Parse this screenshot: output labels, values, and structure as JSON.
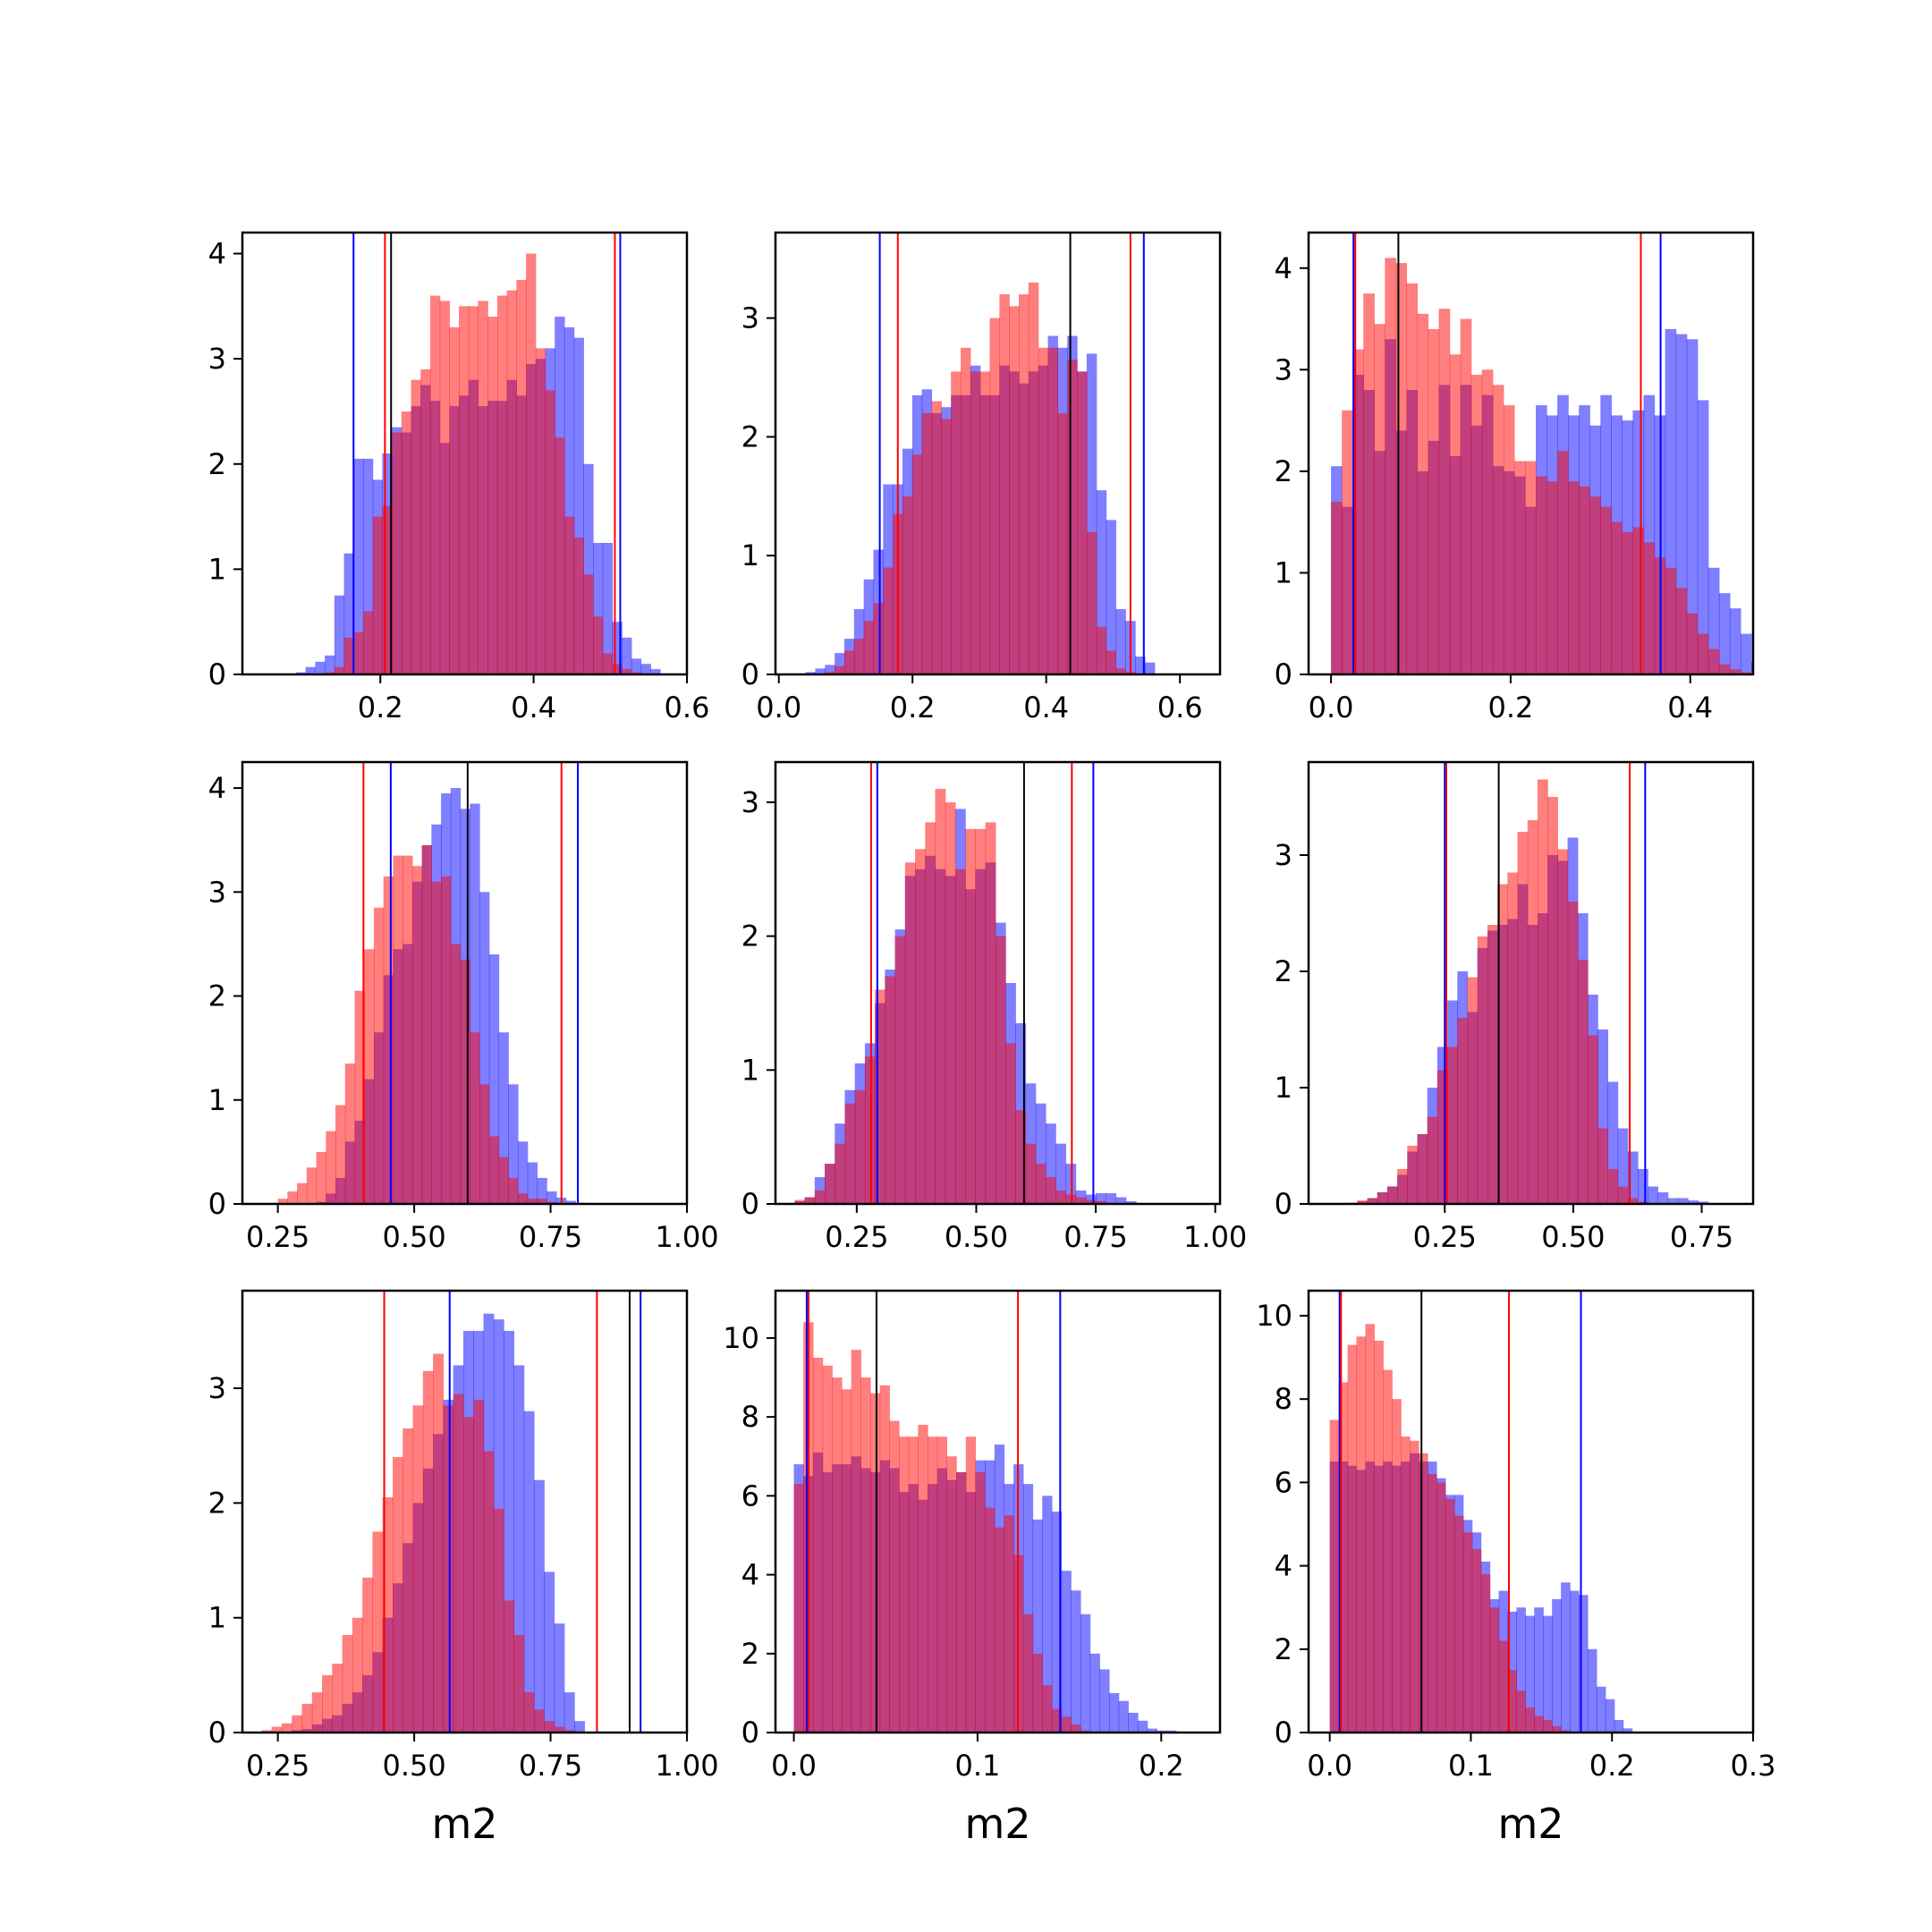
{
  "figure": {
    "colors": {
      "blue": "#0000ff",
      "red": "#ff0000",
      "black": "#000000",
      "blue_fill": "rgba(0,0,255,0.5)",
      "red_fill": "rgba(255,0,0,0.5)"
    }
  },
  "chart_data": [
    {
      "type": "bar",
      "xlabel": "",
      "xlim": [
        0.02,
        0.6
      ],
      "ylim": [
        0,
        4.2
      ],
      "xticks": [
        0.2,
        0.4,
        0.6
      ],
      "yticks": [
        0,
        1,
        2,
        3,
        4
      ],
      "xtick_labels": [
        "0.2",
        "0.4",
        "0.6"
      ],
      "ytick_labels": [
        "0",
        "1",
        "2",
        "3",
        "4"
      ],
      "bins_start": 0.09,
      "bin_width": 0.0125,
      "blue": [
        0.02,
        0.07,
        0.12,
        0.18,
        0.75,
        1.15,
        2.05,
        2.05,
        1.85,
        2.1,
        2.35,
        2.3,
        2.55,
        2.75,
        2.6,
        2.2,
        2.55,
        2.65,
        2.8,
        2.55,
        2.6,
        2.6,
        2.8,
        2.65,
        2.95,
        3.0,
        3.1,
        3.4,
        3.3,
        3.2,
        2.0,
        1.25,
        1.25,
        0.5,
        0.35,
        0.15,
        0.1,
        0.05
      ],
      "red": [
        0,
        0,
        0,
        0.02,
        0.07,
        0.35,
        0.4,
        0.6,
        1.5,
        1.6,
        2.3,
        2.5,
        2.8,
        2.9,
        3.6,
        3.55,
        3.3,
        3.5,
        3.5,
        3.55,
        3.4,
        3.6,
        3.65,
        3.75,
        4.0,
        3.1,
        2.7,
        2.25,
        1.5,
        1.3,
        0.95,
        0.55,
        0.2,
        0.1,
        0.05,
        0.02,
        0,
        0
      ],
      "vlines": [
        {
          "x": 0.165,
          "color": "blue"
        },
        {
          "x": 0.206,
          "color": "red"
        },
        {
          "x": 0.214,
          "color": "black"
        },
        {
          "x": 0.506,
          "color": "red"
        },
        {
          "x": 0.513,
          "color": "blue"
        }
      ]
    },
    {
      "type": "bar",
      "xlabel": "",
      "xlim": [
        -0.005,
        0.66
      ],
      "ylim": [
        0,
        3.72
      ],
      "xticks": [
        0.0,
        0.2,
        0.4,
        0.6
      ],
      "yticks": [
        0,
        1,
        2,
        3
      ],
      "xtick_labels": [
        "0.0",
        "0.2",
        "0.4",
        "0.6"
      ],
      "ytick_labels": [
        "0",
        "1",
        "2",
        "3"
      ],
      "bins_start": 0.04,
      "bin_width": 0.0145,
      "blue": [
        0.02,
        0.05,
        0.08,
        0.18,
        0.3,
        0.55,
        0.8,
        1.05,
        1.6,
        1.6,
        1.9,
        2.35,
        2.4,
        2.2,
        2.25,
        2.35,
        2.35,
        2.6,
        2.35,
        2.35,
        2.6,
        2.55,
        2.45,
        2.55,
        2.6,
        2.85,
        2.75,
        2.85,
        2.55,
        2.7,
        1.55,
        1.3,
        0.55,
        0.45,
        0.15,
        0.1
      ],
      "red": [
        0,
        0,
        0.02,
        0.07,
        0.2,
        0.3,
        0.45,
        0.6,
        0.9,
        1.35,
        1.5,
        1.85,
        2.2,
        2.3,
        2.15,
        2.55,
        2.75,
        2.55,
        2.55,
        3.0,
        3.2,
        3.1,
        3.2,
        3.3,
        2.75,
        2.75,
        2.2,
        2.65,
        2.55,
        1.2,
        0.4,
        0.2,
        0.05,
        0.02,
        0,
        0
      ],
      "vlines": [
        {
          "x": 0.151,
          "color": "blue"
        },
        {
          "x": 0.178,
          "color": "red"
        },
        {
          "x": 0.436,
          "color": "black"
        },
        {
          "x": 0.526,
          "color": "red"
        },
        {
          "x": 0.546,
          "color": "blue"
        }
      ]
    },
    {
      "type": "bar",
      "xlabel": "",
      "xlim": [
        -0.025,
        0.47
      ],
      "ylim": [
        0,
        4.35
      ],
      "xticks": [
        0.0,
        0.2,
        0.4
      ],
      "yticks": [
        0,
        1,
        2,
        3,
        4
      ],
      "xtick_labels": [
        "0.0",
        "0.2",
        "0.4"
      ],
      "ytick_labels": [
        "0",
        "1",
        "2",
        "3",
        "4"
      ],
      "bins_start": 0.0,
      "bin_width": 0.012,
      "blue": [
        2.05,
        1.65,
        2.95,
        2.8,
        2.2,
        3.3,
        2.4,
        2.8,
        2.0,
        2.3,
        2.85,
        2.15,
        2.85,
        2.45,
        2.75,
        2.05,
        2.0,
        1.95,
        1.65,
        2.65,
        2.55,
        2.75,
        2.55,
        2.65,
        2.45,
        2.75,
        2.55,
        2.5,
        2.6,
        2.75,
        2.55,
        3.4,
        3.35,
        3.3,
        2.7,
        1.05,
        0.8,
        0.65,
        0.4,
        0.12
      ],
      "red": [
        1.7,
        2.6,
        3.2,
        3.75,
        3.45,
        4.1,
        4.05,
        3.85,
        3.55,
        3.4,
        3.6,
        3.15,
        3.5,
        2.95,
        3.0,
        2.85,
        2.65,
        2.1,
        2.1,
        1.95,
        1.9,
        2.2,
        1.9,
        1.85,
        1.75,
        1.65,
        1.5,
        1.4,
        1.45,
        1.3,
        1.15,
        1.05,
        0.85,
        0.6,
        0.4,
        0.25,
        0.1,
        0.05,
        0.02,
        0.01
      ],
      "vlines": [
        {
          "x": 0.025,
          "color": "blue"
        },
        {
          "x": 0.027,
          "color": "red"
        },
        {
          "x": 0.075,
          "color": "black"
        },
        {
          "x": 0.345,
          "color": "red"
        },
        {
          "x": 0.367,
          "color": "blue"
        }
      ]
    },
    {
      "type": "bar",
      "xlabel": "",
      "xlim": [
        0.185,
        1.0
      ],
      "ylim": [
        0,
        4.25
      ],
      "xticks": [
        0.25,
        0.5,
        0.75,
        1.0
      ],
      "yticks": [
        0,
        1,
        2,
        3,
        4
      ],
      "xtick_labels": [
        "0.25",
        "0.50",
        "0.75",
        "1.00"
      ],
      "ytick_labels": [
        "0",
        "1",
        "2",
        "3",
        "4"
      ],
      "bins_start": 0.25,
      "bin_width": 0.0176,
      "blue": [
        0,
        0,
        0,
        0,
        0.02,
        0.1,
        0.25,
        0.6,
        0.8,
        1.2,
        1.65,
        2.2,
        2.45,
        2.5,
        3.1,
        3.45,
        3.65,
        3.95,
        4.0,
        3.8,
        3.85,
        3.0,
        2.4,
        1.65,
        1.15,
        0.6,
        0.4,
        0.25,
        0.12,
        0.06,
        0.03,
        0.01
      ],
      "red": [
        0.05,
        0.12,
        0.2,
        0.35,
        0.5,
        0.7,
        0.95,
        1.35,
        2.05,
        2.45,
        2.85,
        3.15,
        3.35,
        3.35,
        3.25,
        3.45,
        3.1,
        3.15,
        2.5,
        2.35,
        1.65,
        1.15,
        0.65,
        0.45,
        0.25,
        0.1,
        0.05,
        0.05,
        0.02,
        0.01,
        0,
        0
      ],
      "vlines": [
        {
          "x": 0.407,
          "color": "red"
        },
        {
          "x": 0.457,
          "color": "blue"
        },
        {
          "x": 0.598,
          "color": "black"
        },
        {
          "x": 0.77,
          "color": "red"
        },
        {
          "x": 0.8,
          "color": "blue"
        }
      ]
    },
    {
      "type": "bar",
      "xlabel": "",
      "xlim": [
        0.08,
        1.01
      ],
      "ylim": [
        0,
        3.3
      ],
      "xticks": [
        0.25,
        0.5,
        0.75,
        1.0
      ],
      "yticks": [
        0,
        1,
        2,
        3
      ],
      "xtick_labels": [
        "0.25",
        "0.50",
        "0.75",
        "1.00"
      ],
      "ytick_labels": [
        "0",
        "1",
        "2",
        "3"
      ],
      "bins_start": 0.12,
      "bin_width": 0.021,
      "blue": [
        0.02,
        0.05,
        0.2,
        0.3,
        0.6,
        0.85,
        1.05,
        1.2,
        1.5,
        1.75,
        2.05,
        2.45,
        2.5,
        2.6,
        2.5,
        2.45,
        2.95,
        2.35,
        2.5,
        2.55,
        2.1,
        1.65,
        1.35,
        0.9,
        0.75,
        0.6,
        0.45,
        0.3,
        0.1,
        0.07,
        0.08,
        0.08,
        0.05,
        0.02
      ],
      "red": [
        0.03,
        0.05,
        0.1,
        0.3,
        0.45,
        0.75,
        0.85,
        1.1,
        1.6,
        1.7,
        2.0,
        2.55,
        2.65,
        2.85,
        3.1,
        3.0,
        2.5,
        2.8,
        2.8,
        2.85,
        2.0,
        1.2,
        0.7,
        0.45,
        0.3,
        0.2,
        0.1,
        0.07,
        0.05,
        0.03,
        0.02,
        0.01,
        0,
        0
      ],
      "vlines": [
        {
          "x": 0.28,
          "color": "red"
        },
        {
          "x": 0.293,
          "color": "blue"
        },
        {
          "x": 0.6,
          "color": "black"
        },
        {
          "x": 0.7,
          "color": "red"
        },
        {
          "x": 0.745,
          "color": "blue"
        }
      ]
    },
    {
      "type": "bar",
      "xlabel": "",
      "xlim": [
        -0.015,
        0.85
      ],
      "ylim": [
        0,
        3.8
      ],
      "xticks": [
        0.25,
        0.5,
        0.75
      ],
      "yticks": [
        0,
        1,
        2,
        3
      ],
      "xtick_labels": [
        "0.25",
        "0.50",
        "0.75"
      ],
      "ytick_labels": [
        "0",
        "1",
        "2",
        "3"
      ],
      "bins_start": 0.06,
      "bin_width": 0.0195,
      "blue": [
        0,
        0.02,
        0.05,
        0.1,
        0.15,
        0.25,
        0.45,
        0.6,
        1.0,
        1.35,
        1.75,
        2.0,
        1.65,
        2.2,
        2.35,
        2.4,
        2.45,
        2.75,
        2.4,
        2.5,
        3.0,
        2.95,
        3.15,
        2.5,
        1.8,
        1.5,
        1.05,
        0.65,
        0.45,
        0.3,
        0.15,
        0.1,
        0.05,
        0.05,
        0.03,
        0.02
      ],
      "red": [
        0.01,
        0.03,
        0.05,
        0.1,
        0.15,
        0.3,
        0.5,
        0.6,
        0.75,
        1.15,
        1.35,
        1.6,
        1.95,
        2.3,
        2.4,
        2.75,
        2.85,
        3.2,
        3.3,
        3.65,
        3.5,
        3.05,
        2.6,
        2.1,
        1.45,
        0.65,
        0.3,
        0.15,
        0.05,
        0.02,
        0.01,
        0,
        0,
        0,
        0,
        0
      ],
      "vlines": [
        {
          "x": 0.25,
          "color": "blue"
        },
        {
          "x": 0.253,
          "color": "red"
        },
        {
          "x": 0.355,
          "color": "black"
        },
        {
          "x": 0.61,
          "color": "red"
        },
        {
          "x": 0.64,
          "color": "blue"
        }
      ]
    },
    {
      "type": "bar",
      "xlabel": "m2",
      "xlim": [
        0.185,
        1.0
      ],
      "ylim": [
        0,
        3.85
      ],
      "xticks": [
        0.25,
        0.5,
        0.75,
        1.0
      ],
      "yticks": [
        0,
        1,
        2,
        3
      ],
      "xtick_labels": [
        "0.25",
        "0.50",
        "0.75",
        "1.00"
      ],
      "ytick_labels": [
        "0",
        "1",
        "2",
        "3"
      ],
      "bins_start": 0.22,
      "bin_width": 0.0185,
      "blue": [
        0,
        0,
        0,
        0.02,
        0.03,
        0.07,
        0.12,
        0.15,
        0.25,
        0.35,
        0.5,
        0.7,
        1.0,
        1.3,
        1.65,
        2.0,
        2.3,
        2.6,
        2.9,
        3.2,
        3.5,
        3.5,
        3.65,
        3.6,
        3.5,
        3.2,
        2.8,
        2.2,
        1.4,
        0.95,
        0.35,
        0.1
      ],
      "red": [
        0.02,
        0.05,
        0.08,
        0.15,
        0.25,
        0.35,
        0.5,
        0.6,
        0.85,
        1.0,
        1.35,
        1.75,
        2.05,
        2.4,
        2.65,
        2.85,
        3.15,
        3.3,
        2.85,
        2.95,
        2.75,
        2.9,
        2.45,
        1.95,
        1.15,
        0.85,
        0.35,
        0.2,
        0.1,
        0.05,
        0.02,
        0
      ],
      "vlines": [
        {
          "x": 0.445,
          "color": "red"
        },
        {
          "x": 0.565,
          "color": "blue"
        },
        {
          "x": 0.835,
          "color": "red"
        },
        {
          "x": 0.895,
          "color": "black"
        },
        {
          "x": 0.915,
          "color": "blue"
        }
      ]
    },
    {
      "type": "bar",
      "xlabel": "m2",
      "xlim": [
        -0.01,
        0.232
      ],
      "ylim": [
        0,
        11.2
      ],
      "xticks": [
        0.0,
        0.1,
        0.2
      ],
      "yticks": [
        0,
        2,
        4,
        6,
        8,
        10
      ],
      "xtick_labels": [
        "0.0",
        "0.1",
        "0.2"
      ],
      "ytick_labels": [
        "0",
        "2",
        "4",
        "6",
        "8",
        "10"
      ],
      "bins_start": 0.0,
      "bin_width": 0.0052,
      "blue": [
        6.8,
        6.5,
        7.1,
        6.6,
        6.8,
        6.8,
        7.0,
        6.7,
        6.6,
        6.9,
        6.7,
        6.1,
        6.3,
        5.9,
        6.3,
        6.7,
        6.4,
        6.6,
        6.1,
        6.9,
        6.9,
        7.3,
        6.3,
        6.8,
        6.3,
        5.4,
        6.0,
        5.6,
        4.1,
        3.6,
        3.0,
        2.0,
        1.6,
        1.0,
        0.8,
        0.5,
        0.3,
        0.1,
        0.05,
        0.05
      ],
      "red": [
        6.3,
        10.4,
        9.5,
        9.3,
        9.0,
        8.7,
        9.7,
        9.0,
        8.6,
        8.8,
        7.9,
        7.5,
        7.5,
        7.8,
        7.5,
        7.5,
        7.0,
        6.6,
        7.5,
        6.6,
        5.7,
        5.2,
        5.5,
        4.5,
        3.0,
        2.0,
        1.2,
        0.6,
        0.4,
        0.2,
        0.05,
        0,
        0,
        0,
        0,
        0,
        0,
        0,
        0,
        0
      ],
      "vlines": [
        {
          "x": 0.007,
          "color": "blue"
        },
        {
          "x": 0.008,
          "color": "red"
        },
        {
          "x": 0.045,
          "color": "black"
        },
        {
          "x": 0.122,
          "color": "red"
        },
        {
          "x": 0.145,
          "color": "blue"
        }
      ]
    },
    {
      "type": "bar",
      "xlabel": "m2",
      "xlim": [
        -0.015,
        0.3
      ],
      "ylim": [
        0,
        10.6
      ],
      "xticks": [
        0.0,
        0.1,
        0.2,
        0.3
      ],
      "yticks": [
        0,
        2,
        4,
        6,
        8,
        10
      ],
      "xtick_labels": [
        "0.0",
        "0.1",
        "0.2",
        "0.3"
      ],
      "ytick_labels": [
        "0",
        "2",
        "4",
        "6",
        "8",
        "10"
      ],
      "bins_start": 0.0,
      "bin_width": 0.0063,
      "blue": [
        6.5,
        6.5,
        6.4,
        6.3,
        6.5,
        6.4,
        6.5,
        6.4,
        6.5,
        6.7,
        6.5,
        6.5,
        6.1,
        5.7,
        5.7,
        5.1,
        4.8,
        4.1,
        3.2,
        3.4,
        2.9,
        3.0,
        2.8,
        3.0,
        2.8,
        3.2,
        3.6,
        3.4,
        3.3,
        2.0,
        1.1,
        0.8,
        0.3,
        0.1
      ],
      "red": [
        7.5,
        8.4,
        9.3,
        9.5,
        9.8,
        9.4,
        8.7,
        8.0,
        7.1,
        7.0,
        6.7,
        6.2,
        6.0,
        5.6,
        5.2,
        4.8,
        4.4,
        3.8,
        3.0,
        2.2,
        1.5,
        1.0,
        0.6,
        0.4,
        0.3,
        0.15,
        0.05,
        0.02,
        0,
        0,
        0,
        0,
        0,
        0
      ],
      "vlines": [
        {
          "x": 0.007,
          "color": "blue"
        },
        {
          "x": 0.008,
          "color": "red"
        },
        {
          "x": 0.065,
          "color": "black"
        },
        {
          "x": 0.127,
          "color": "red"
        },
        {
          "x": 0.178,
          "color": "blue"
        }
      ]
    }
  ]
}
